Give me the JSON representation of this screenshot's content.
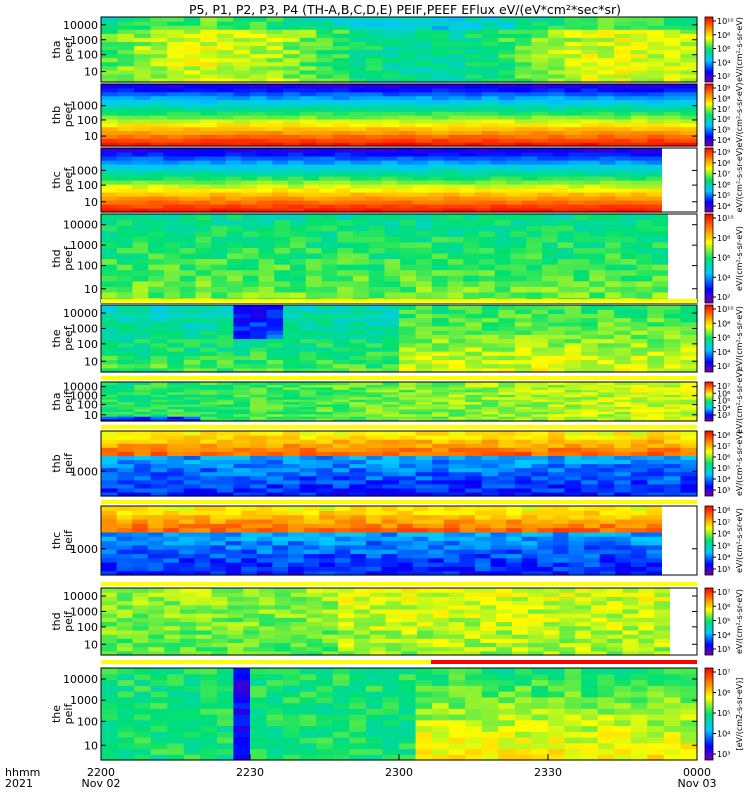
{
  "title": "P5, P1, P2, P3, P4 (TH-A,B,C,D,E) PEIF,PEEF EFlux eV/(eV*cm²*sec*sr)",
  "time_axis": {
    "row_label_1": "hhmm",
    "row_label_2": "2021",
    "ticks": [
      {
        "time": "2200",
        "date": "Nov 02"
      },
      {
        "time": "2230",
        "date": ""
      },
      {
        "time": "2300",
        "date": ""
      },
      {
        "time": "2330",
        "date": ""
      },
      {
        "time": "0000",
        "date": "Nov 03"
      }
    ]
  },
  "chart_data": {
    "type": "heatmap",
    "x_range": [
      "2021-11-02 22:00",
      "2021-11-03 00:00"
    ],
    "y_scale": "log",
    "colorscale": [
      "#7a00a8",
      "#0000ff",
      "#00c8ff",
      "#00e070",
      "#ffff00",
      "#ff8000",
      "#ff0000"
    ],
    "panels": [
      {
        "label_1": "tha",
        "label_2": "peef",
        "y_ticks": [
          "10000",
          "1000",
          "100",
          "10"
        ],
        "cbar_ticks": [
          "10¹⁰",
          "10⁸",
          "10⁶",
          "10⁴",
          "10²"
        ],
        "cbar_label": "eV/(cm²-s-sr-eV)"
      },
      {
        "label_1": "thb",
        "label_2": "peef",
        "y_ticks": [
          "1000",
          "100",
          "10"
        ],
        "cbar_ticks": [
          "10⁹",
          "10⁸",
          "10⁷",
          "10⁶",
          "10⁵",
          "10⁴"
        ],
        "cbar_label": "eV/(cm²-s-sr-eV)"
      },
      {
        "label_1": "thc",
        "label_2": "peef",
        "y_ticks": [
          "1000",
          "100",
          "10"
        ],
        "cbar_ticks": [
          "10⁹",
          "10⁸",
          "10⁷",
          "10⁶",
          "10⁵",
          "10⁴"
        ],
        "cbar_label": "eV/(cm²-s-sr-eV)"
      },
      {
        "label_1": "thd",
        "label_2": "peef",
        "y_ticks": [
          "10000",
          "1000",
          "100",
          "10"
        ],
        "cbar_ticks": [
          "10¹⁰",
          "10⁸",
          "10⁶",
          "10⁴",
          "10²"
        ],
        "cbar_label": "eV/(cm²-s-sr-eV)"
      },
      {
        "label_1": "the",
        "label_2": "peef",
        "y_ticks": [
          "10000",
          "1000",
          "100",
          "10"
        ],
        "cbar_ticks": [
          "10¹⁰",
          "10⁸",
          "10⁶",
          "10⁴",
          "10²"
        ],
        "cbar_label": "eV/(cm²-s-sr-eV)"
      },
      {
        "label_1": "tha",
        "label_2": "peif",
        "y_ticks": [
          "10000",
          "1000",
          "100",
          "10"
        ],
        "cbar_ticks": [
          "10⁷",
          "10⁶",
          "10⁵",
          "10⁴",
          "10³"
        ],
        "cbar_label": "eV/(cm²-s-sr-eV)"
      },
      {
        "label_1": "thb",
        "label_2": "peif",
        "y_ticks": [
          "1000"
        ],
        "cbar_ticks": [
          "10⁸",
          "10⁷",
          "10⁶",
          "10⁵",
          "10⁴",
          "10³"
        ],
        "cbar_label": "eV/(cm²-s-sr-eV)"
      },
      {
        "label_1": "thc",
        "label_2": "peif",
        "y_ticks": [
          "1000"
        ],
        "cbar_ticks": [
          "10⁸",
          "10⁷",
          "10⁶",
          "10⁵",
          "10⁴",
          "10³"
        ],
        "cbar_label": "eV/(cm²-s-sr-eV)"
      },
      {
        "label_1": "thd",
        "label_2": "peif",
        "y_ticks": [
          "10000",
          "1000",
          "100",
          "10"
        ],
        "cbar_ticks": [
          "10⁷",
          "10⁶",
          "10⁵",
          "10⁴",
          "10³"
        ],
        "cbar_label": "eV/(cm²-s-sr-eV)"
      },
      {
        "label_1": "the",
        "label_2": "peif",
        "y_ticks": [
          "10000",
          "1000",
          "100",
          "10"
        ],
        "cbar_ticks": [
          "10⁷",
          "10⁶",
          "10⁵",
          "10⁴",
          "10³"
        ],
        "cbar_label": "[eV/(cm2-s-sr-eV)]"
      }
    ]
  }
}
